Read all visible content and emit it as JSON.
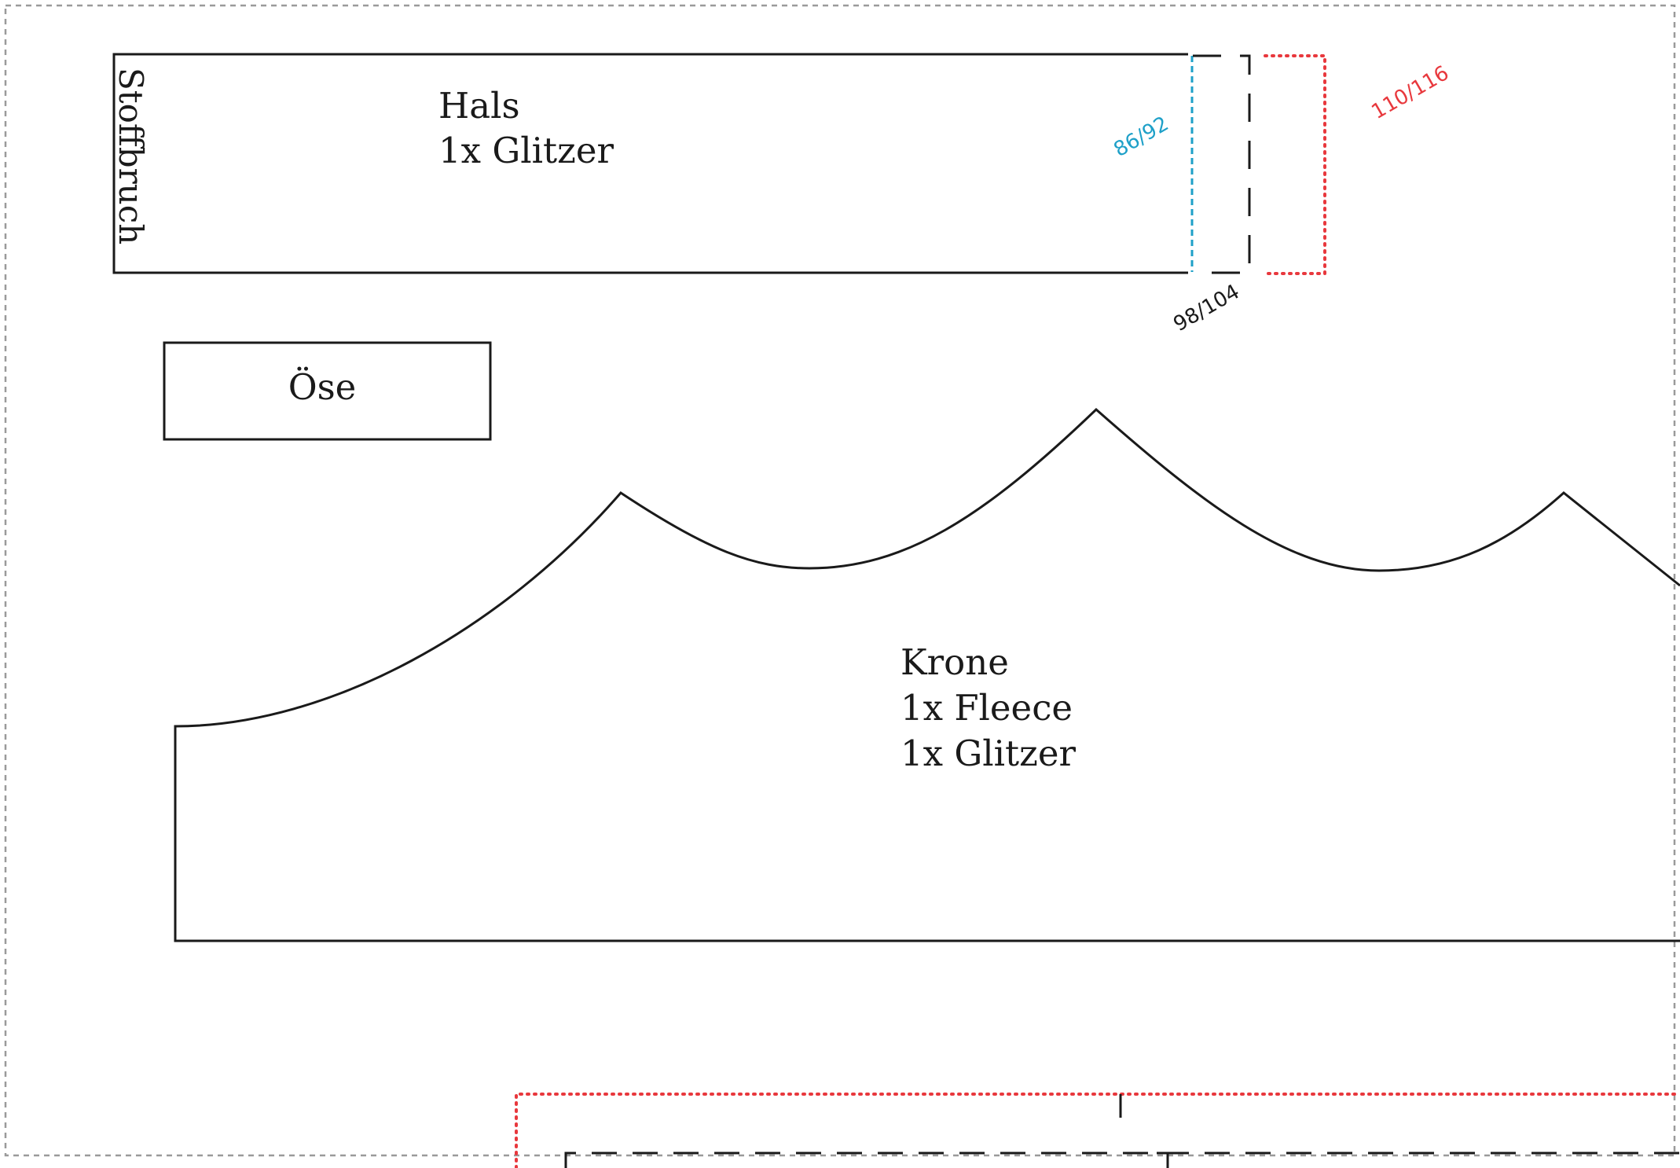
{
  "pieces": {
    "hals": {
      "title": "Hals",
      "cut_instruction": "1x Glitzer",
      "fold_label": "Stoffbruch"
    },
    "oese": {
      "title": "Öse"
    },
    "krone": {
      "title": "Krone",
      "cut_instructions": [
        "1x Fleece",
        "1x Glitzer"
      ]
    }
  },
  "sizes": [
    {
      "label": "86/92",
      "line_style": "dashed",
      "color": "#1ea0c8"
    },
    {
      "label": "98/104",
      "line_style": "long-dashed",
      "color": "#1a1a1a"
    },
    {
      "label": "110/116",
      "line_style": "dotted",
      "color": "#e8383d"
    }
  ],
  "colors": {
    "outline": "#1a1a1a",
    "page_border": "#9a9a9a",
    "size_small": "#1ea0c8",
    "size_medium": "#1a1a1a",
    "size_large": "#e8383d"
  }
}
